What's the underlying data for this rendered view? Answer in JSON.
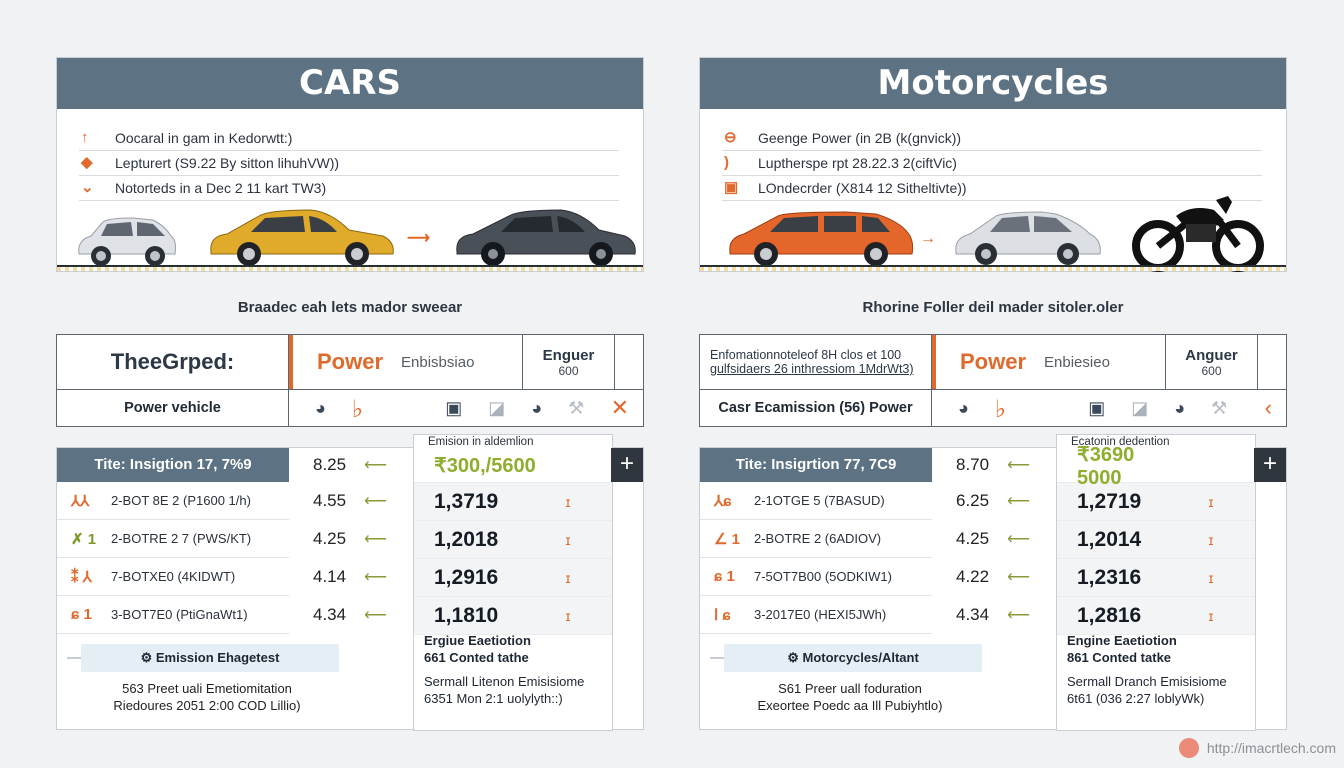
{
  "cars": {
    "title": "CARS",
    "features": [
      {
        "icon": "↑",
        "text": "Oocaral in gam in Kedorwtt:)"
      },
      {
        "icon": "◆",
        "text": "Lepturert (S9.22 By sitton lihuhVW))"
      },
      {
        "icon": "⌄",
        "text": "Notorteds in a Dec 2 11 kart TW3)"
      }
    ],
    "caption": "Braadec eah lets mador sweear",
    "header": {
      "title": "TheeGrped:",
      "power": "Power",
      "emission": "Enbisbsiao",
      "engine": "Enguer",
      "engine_value": "600"
    },
    "subrow_label": "Power vehicle",
    "data_title": "Tite: Insigtion 17, 7%9",
    "rows": [
      {
        "icon": "⅄⅄",
        "label": "2-BOT 8E 2 (P1600 1/h)",
        "value": "4.55",
        "number": "1,3719",
        "mark": "ɪ"
      },
      {
        "icon": "✗ 1",
        "label": "2-BOTRE 2 7 (PWS/KT)",
        "value": "4.25",
        "number": "1,2018",
        "mark": "ɪ"
      },
      {
        "icon": "⁑ ⅄",
        "label": "7-BOTXE0 (4KIDWT)",
        "value": "4.14",
        "number": "1,2916",
        "mark": "ɪ"
      },
      {
        "icon": "ɕ 1",
        "label": "3-BOT7E0 (PtiGnaWt1)",
        "value": "4.34",
        "number": "1,1810",
        "mark": "ɪ"
      }
    ],
    "head_value": "8.25",
    "num_caption": "Emision in aldemlion",
    "head_number": "₹300,/5600",
    "tag": "Emission Ehagetest",
    "foot": [
      "563 Preet uali Emetiomitation",
      "Riedoures 2051 2:00 COD Lillio)"
    ],
    "engine_title": "Ergiue Eaetiotion",
    "engine_sub": "661 Conted tathe",
    "engine_note": [
      "Sermall Litenon Emisisiome",
      "6351 Mon 2:1 uolylyth::)"
    ]
  },
  "motorcycles": {
    "title": "Motorcycles",
    "features": [
      {
        "icon": "⊖",
        "text": "Geenge Power (in 2B (k(gnvick))"
      },
      {
        "icon": ")",
        "text": "Luptherspe rpt 28.22.3 2(ciftVic)"
      },
      {
        "icon": "▣",
        "text": "LOndecrder (X814 12 Sitheltivte))"
      }
    ],
    "caption": "Rhorine Foller deil mader sitoler.oler",
    "header": {
      "title_lines": [
        "Enfomationnoteleof 8H clos et 100",
        "gulfsidaers 26 inthressiom 1MdrWt3)"
      ],
      "power": "Power",
      "emission": "Enbiesieo",
      "engine": "Anguer",
      "engine_value": "600"
    },
    "subrow_label": "Casr Ecamission (56) Power",
    "data_title": "Tite: Insigrtion 77, 7C9",
    "rows": [
      {
        "icon": "⅄ɕ",
        "label": "2-1OTGE 5 (7BASUD)",
        "value": "6.25",
        "number": "1,2719",
        "mark": "ɪ"
      },
      {
        "icon": "∠ 1",
        "label": "2-BOTRE 2 (6ADIOV)",
        "value": "4.25",
        "number": "1,2014",
        "mark": "ɪ"
      },
      {
        "icon": "ɕ 1",
        "label": "7-5OT7B00 (5ODKIW1)",
        "value": "4.22",
        "number": "1,2316",
        "mark": "ɪ"
      },
      {
        "icon": "ⅼ ɕ",
        "label": "3-2017E0 (HEXI5JWh)",
        "value": "4.34",
        "number": "1,2816",
        "mark": "ɪ"
      }
    ],
    "head_value": "8.70",
    "num_caption": "Ecatonin dedention",
    "head_number": "₹3690 5000",
    "tag": "Motorcycles/Altant",
    "foot": [
      "S61 Preer uall foduration",
      "Exeortee Poedc aa Ill Pubiyhtlo)"
    ],
    "engine_title": "Engine Eaetiotion",
    "engine_sub": "861 Conted tatke",
    "engine_note": [
      "Sermall Dranch Emisisiome",
      "6t61 (036 2:27 loblyWk)"
    ]
  },
  "watermark": "http://imacrtlech.com"
}
